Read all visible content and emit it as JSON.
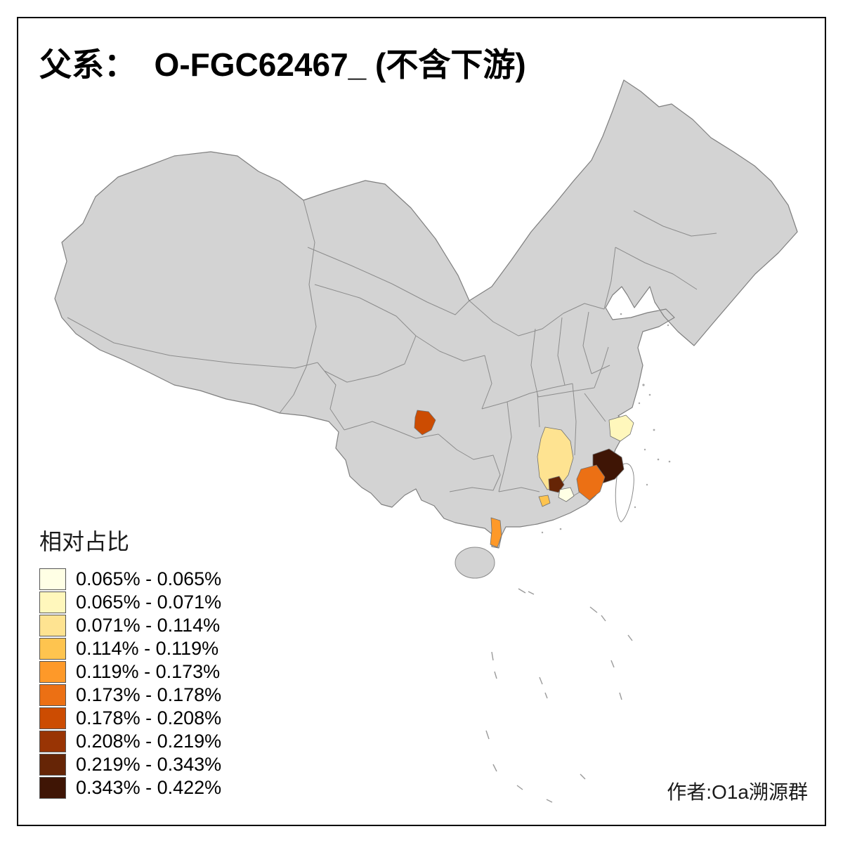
{
  "title": "父系：  O-FGC62467_ (不含下游)",
  "legend": {
    "title": "相对占比"
  },
  "author": "作者:O1a溯源群",
  "map": {
    "base_fill": "#d3d3d3",
    "taiwan_fill": "#ffffff",
    "outline_color": "#7f7f7f"
  },
  "chart_data": {
    "type": "choropleth",
    "title": "父系：  O-FGC62467_ (不含下游)",
    "legend_title": "相对占比",
    "unit": "%",
    "bins": [
      {
        "label": "0.065% - 0.065%",
        "color": "#ffffe5"
      },
      {
        "label": "0.065% - 0.071%",
        "color": "#fff7bc"
      },
      {
        "label": "0.071% - 0.114%",
        "color": "#fee391"
      },
      {
        "label": "0.114% - 0.119%",
        "color": "#fec44f"
      },
      {
        "label": "0.119% - 0.173%",
        "color": "#fe9929"
      },
      {
        "label": "0.173% - 0.178%",
        "color": "#ec7014"
      },
      {
        "label": "0.178% - 0.208%",
        "color": "#cc4c02"
      },
      {
        "label": "0.208% - 0.219%",
        "color": "#993404"
      },
      {
        "label": "0.219% - 0.343%",
        "color": "#662506"
      },
      {
        "label": "0.343% - 0.422%",
        "color": "#3f1505"
      }
    ],
    "highlighted_areas": [
      {
        "area": "chongqing-area",
        "color": "#cc4c02",
        "bin": "0.178% - 0.208%"
      },
      {
        "area": "jiangxi-area",
        "color": "#fee391",
        "bin": "0.071% - 0.114%"
      },
      {
        "area": "zhejiang-coast-area",
        "color": "#fff7bc",
        "bin": "0.065% - 0.071%"
      },
      {
        "area": "north-fujian-area",
        "color": "#3f1505",
        "bin": "0.343% - 0.422%"
      },
      {
        "area": "south-fujian-area",
        "color": "#ec7014",
        "bin": "0.173% - 0.178%"
      },
      {
        "area": "east-guangdong-dark-area",
        "color": "#662506",
        "bin": "0.219% - 0.343%"
      },
      {
        "area": "east-guangdong-pale-area",
        "color": "#ffffe5",
        "bin": "0.065% - 0.065%"
      },
      {
        "area": "west-guangdong-area",
        "color": "#fec44f",
        "bin": "0.114% - 0.119%"
      },
      {
        "area": "leizhou-peninsula-area",
        "color": "#fe9929",
        "bin": "0.119% - 0.173%"
      }
    ]
  }
}
